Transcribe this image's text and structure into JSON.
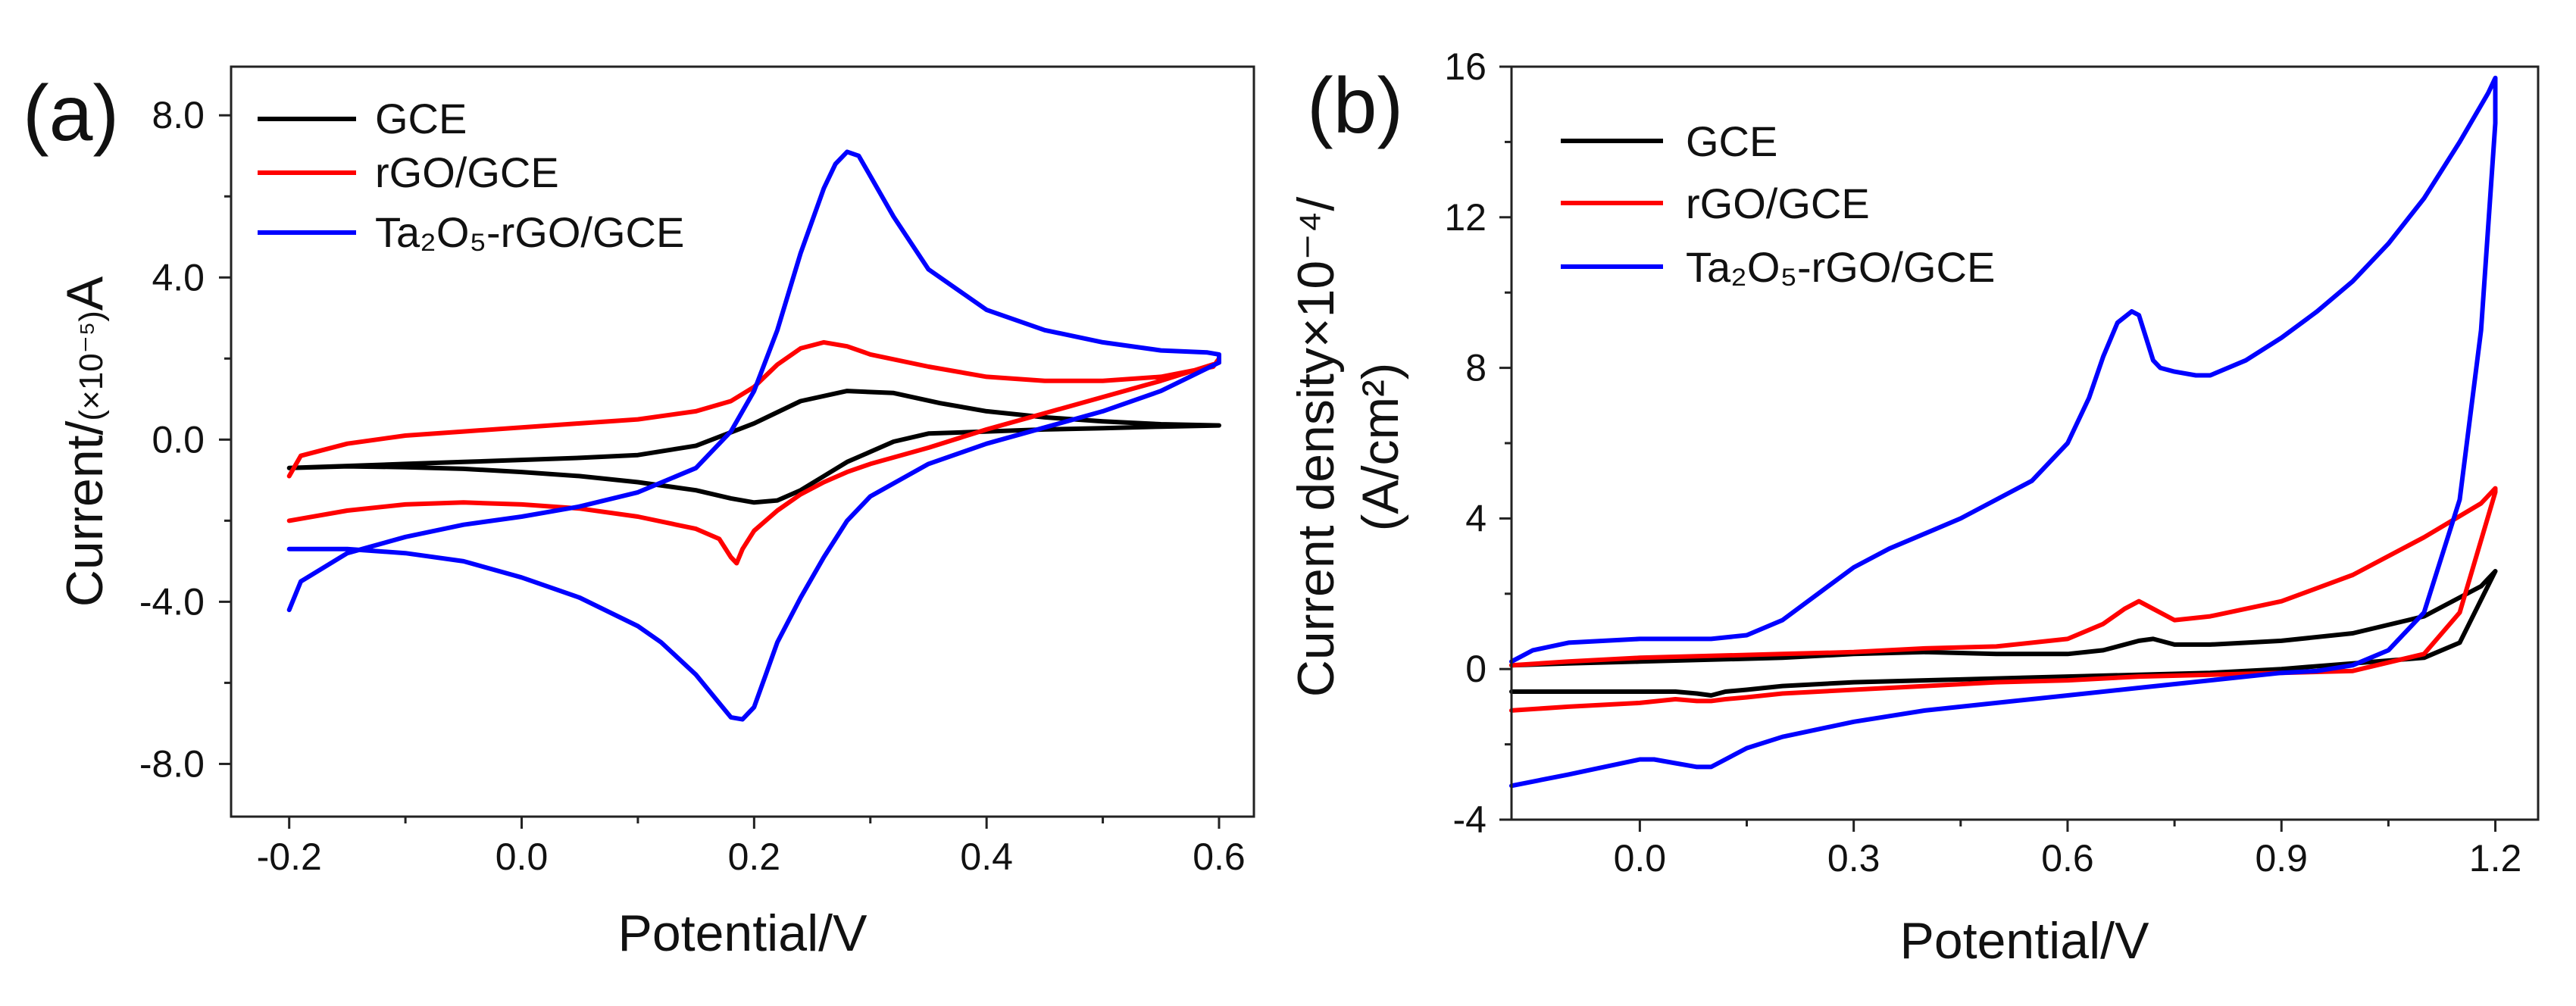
{
  "figure": "Cyclic voltammograms",
  "chart_data": [
    {
      "type": "line",
      "panel_label": "(a)",
      "title": "",
      "xlabel": "Potential/V",
      "ylabel_prefix": "Current/",
      "ylabel_multiplier": "(×10⁻⁵)",
      "ylabel_unit": "A",
      "xlim": [
        -0.25,
        0.63
      ],
      "ylim": [
        -9.3,
        9.2
      ],
      "xticks": [
        -0.2,
        0.0,
        0.2,
        0.4,
        0.6
      ],
      "xtick_labels": [
        "-0.2",
        "0.0",
        "0.2",
        "0.4",
        "0.6"
      ],
      "yticks": [
        -8.0,
        -4.0,
        0.0,
        4.0,
        8.0
      ],
      "ytick_labels": [
        "-8.0",
        "-4.0",
        "0.0",
        "4.0",
        "8.0"
      ],
      "legend_position": "top-left",
      "series": [
        {
          "name": "GCE",
          "color": "#000000",
          "x": [
            -0.2,
            -0.15,
            -0.1,
            -0.05,
            0,
            0.05,
            0.1,
            0.15,
            0.2,
            0.24,
            0.28,
            0.32,
            0.36,
            0.4,
            0.45,
            0.5,
            0.55,
            0.6,
            0.6,
            0.55,
            0.5,
            0.45,
            0.4,
            0.35,
            0.32,
            0.3,
            0.28,
            0.26,
            0.24,
            0.22,
            0.2,
            0.18,
            0.15,
            0.1,
            0.05,
            0,
            -0.05,
            -0.1,
            -0.15,
            -0.2
          ],
          "y": [
            -0.7,
            -0.65,
            -0.6,
            -0.55,
            -0.5,
            -0.45,
            -0.38,
            -0.15,
            0.4,
            0.95,
            1.2,
            1.15,
            0.9,
            0.7,
            0.55,
            0.45,
            0.38,
            0.35,
            0.35,
            0.32,
            0.28,
            0.25,
            0.2,
            0.15,
            -0.05,
            -0.3,
            -0.55,
            -0.9,
            -1.25,
            -1.5,
            -1.55,
            -1.45,
            -1.25,
            -1.05,
            -0.9,
            -0.8,
            -0.72,
            -0.68,
            -0.66,
            -0.7
          ]
        },
        {
          "name": "rGO/GCE",
          "color": "#ff0000",
          "x": [
            -0.2,
            -0.19,
            -0.15,
            -0.1,
            -0.05,
            0,
            0.05,
            0.1,
            0.15,
            0.18,
            0.2,
            0.22,
            0.24,
            0.26,
            0.28,
            0.3,
            0.35,
            0.4,
            0.45,
            0.5,
            0.55,
            0.595,
            0.6,
            0.6,
            0.55,
            0.5,
            0.45,
            0.4,
            0.35,
            0.3,
            0.28,
            0.26,
            0.24,
            0.22,
            0.2,
            0.19,
            0.185,
            0.18,
            0.17,
            0.15,
            0.1,
            0.05,
            0,
            -0.05,
            -0.1,
            -0.15,
            -0.2
          ],
          "y": [
            -0.9,
            -0.4,
            -0.1,
            0.1,
            0.2,
            0.3,
            0.4,
            0.5,
            0.7,
            0.95,
            1.3,
            1.85,
            2.25,
            2.4,
            2.3,
            2.1,
            1.8,
            1.55,
            1.45,
            1.45,
            1.55,
            1.8,
            2.0,
            1.9,
            1.45,
            1.05,
            0.65,
            0.25,
            -0.2,
            -0.6,
            -0.8,
            -1.05,
            -1.35,
            -1.75,
            -2.25,
            -2.7,
            -3.05,
            -2.9,
            -2.45,
            -2.2,
            -1.9,
            -1.7,
            -1.6,
            -1.55,
            -1.6,
            -1.75,
            -2.0
          ]
        },
        {
          "name": "Ta₂O₅-rGO/GCE",
          "color": "#0000ff",
          "x": [
            -0.2,
            -0.19,
            -0.15,
            -0.1,
            -0.05,
            0,
            0.05,
            0.1,
            0.15,
            0.18,
            0.2,
            0.22,
            0.24,
            0.26,
            0.27,
            0.28,
            0.29,
            0.3,
            0.32,
            0.35,
            0.4,
            0.45,
            0.5,
            0.55,
            0.59,
            0.6,
            0.6,
            0.55,
            0.5,
            0.45,
            0.4,
            0.35,
            0.3,
            0.28,
            0.26,
            0.24,
            0.22,
            0.21,
            0.2,
            0.19,
            0.18,
            0.17,
            0.15,
            0.12,
            0.1,
            0.05,
            0,
            -0.05,
            -0.1,
            -0.15,
            -0.2
          ],
          "y": [
            -4.2,
            -3.5,
            -2.8,
            -2.4,
            -2.1,
            -1.9,
            -1.65,
            -1.3,
            -0.7,
            0.2,
            1.2,
            2.7,
            4.6,
            6.2,
            6.8,
            7.1,
            7.0,
            6.5,
            5.5,
            4.2,
            3.2,
            2.7,
            2.4,
            2.2,
            2.15,
            2.1,
            1.9,
            1.2,
            0.7,
            0.3,
            -0.1,
            -0.6,
            -1.4,
            -2.0,
            -2.9,
            -3.9,
            -5.0,
            -5.8,
            -6.6,
            -6.9,
            -6.85,
            -6.5,
            -5.8,
            -5.0,
            -4.6,
            -3.9,
            -3.4,
            -3.0,
            -2.8,
            -2.7,
            -2.7
          ]
        }
      ]
    },
    {
      "type": "line",
      "panel_label": "(b)",
      "title": "",
      "xlabel": "Potential/V",
      "ylabel_line1": "Current density×10⁻⁴/",
      "ylabel_line2": "(A/cm²)",
      "xlim": [
        -0.18,
        1.26
      ],
      "ylim": [
        -4,
        16
      ],
      "xticks": [
        0.0,
        0.3,
        0.6,
        0.9,
        1.2
      ],
      "xtick_labels": [
        "0.0",
        "0.3",
        "0.6",
        "0.9",
        "1.2"
      ],
      "yticks": [
        -4,
        0,
        4,
        8,
        12,
        16
      ],
      "ytick_labels": [
        "-4",
        "0",
        "4",
        "8",
        "12",
        "16"
      ],
      "legend_position": "top-left",
      "series": [
        {
          "name": "GCE",
          "color": "#000000",
          "x": [
            -0.18,
            -0.1,
            0,
            0.1,
            0.2,
            0.3,
            0.4,
            0.5,
            0.6,
            0.65,
            0.7,
            0.72,
            0.75,
            0.8,
            0.9,
            1.0,
            1.1,
            1.18,
            1.2,
            1.2,
            1.15,
            1.1,
            1.0,
            0.9,
            0.8,
            0.7,
            0.6,
            0.5,
            0.4,
            0.3,
            0.2,
            0.15,
            0.12,
            0.1,
            0.08,
            0.05,
            0,
            -0.1,
            -0.18
          ],
          "y": [
            0.1,
            0.15,
            0.2,
            0.25,
            0.3,
            0.4,
            0.45,
            0.4,
            0.4,
            0.5,
            0.75,
            0.8,
            0.65,
            0.65,
            0.75,
            0.95,
            1.4,
            2.2,
            2.6,
            2.6,
            0.7,
            0.3,
            0.15,
            0.0,
            -0.1,
            -0.15,
            -0.2,
            -0.25,
            -0.3,
            -0.35,
            -0.45,
            -0.55,
            -0.6,
            -0.7,
            -0.65,
            -0.6,
            -0.6,
            -0.6,
            -0.6
          ]
        },
        {
          "name": "rGO/GCE",
          "color": "#ff0000",
          "x": [
            -0.18,
            -0.1,
            0,
            0.1,
            0.2,
            0.3,
            0.4,
            0.5,
            0.6,
            0.65,
            0.68,
            0.7,
            0.72,
            0.75,
            0.8,
            0.9,
            1.0,
            1.1,
            1.18,
            1.2,
            1.2,
            1.15,
            1.1,
            1.0,
            0.9,
            0.8,
            0.7,
            0.6,
            0.5,
            0.4,
            0.3,
            0.2,
            0.15,
            0.12,
            0.1,
            0.08,
            0.05,
            0,
            -0.1,
            -0.18
          ],
          "y": [
            0.1,
            0.2,
            0.3,
            0.35,
            0.4,
            0.45,
            0.55,
            0.6,
            0.8,
            1.2,
            1.6,
            1.8,
            1.6,
            1.3,
            1.4,
            1.8,
            2.5,
            3.5,
            4.4,
            4.8,
            4.7,
            1.5,
            0.4,
            -0.05,
            -0.1,
            -0.15,
            -0.2,
            -0.3,
            -0.35,
            -0.45,
            -0.55,
            -0.65,
            -0.75,
            -0.8,
            -0.85,
            -0.85,
            -0.8,
            -0.9,
            -1.0,
            -1.1
          ]
        },
        {
          "name": "Ta₂O₅-rGO/GCE",
          "color": "#0000ff",
          "x": [
            -0.18,
            -0.15,
            -0.1,
            0,
            0.1,
            0.15,
            0.2,
            0.25,
            0.3,
            0.35,
            0.4,
            0.45,
            0.5,
            0.55,
            0.6,
            0.63,
            0.65,
            0.67,
            0.69,
            0.7,
            0.71,
            0.72,
            0.73,
            0.75,
            0.78,
            0.8,
            0.85,
            0.9,
            0.95,
            1.0,
            1.05,
            1.1,
            1.15,
            1.19,
            1.2,
            1.2,
            1.18,
            1.15,
            1.1,
            1.05,
            1.0,
            0.95,
            0.9,
            0.8,
            0.7,
            0.6,
            0.5,
            0.4,
            0.3,
            0.2,
            0.15,
            0.12,
            0.1,
            0.08,
            0.05,
            0.02,
            0,
            -0.1,
            -0.18
          ],
          "y": [
            0.2,
            0.5,
            0.7,
            0.8,
            0.8,
            0.9,
            1.3,
            2.0,
            2.7,
            3.2,
            3.6,
            4.0,
            4.5,
            5.0,
            6.0,
            7.2,
            8.3,
            9.2,
            9.5,
            9.4,
            8.8,
            8.2,
            8.0,
            7.9,
            7.8,
            7.8,
            8.2,
            8.8,
            9.5,
            10.3,
            11.3,
            12.5,
            14.0,
            15.3,
            15.7,
            14.5,
            9.0,
            4.5,
            1.5,
            0.5,
            0.1,
            -0.05,
            -0.1,
            -0.3,
            -0.5,
            -0.7,
            -0.9,
            -1.1,
            -1.4,
            -1.8,
            -2.1,
            -2.4,
            -2.6,
            -2.6,
            -2.5,
            -2.4,
            -2.4,
            -2.8,
            -3.1
          ]
        }
      ]
    }
  ]
}
